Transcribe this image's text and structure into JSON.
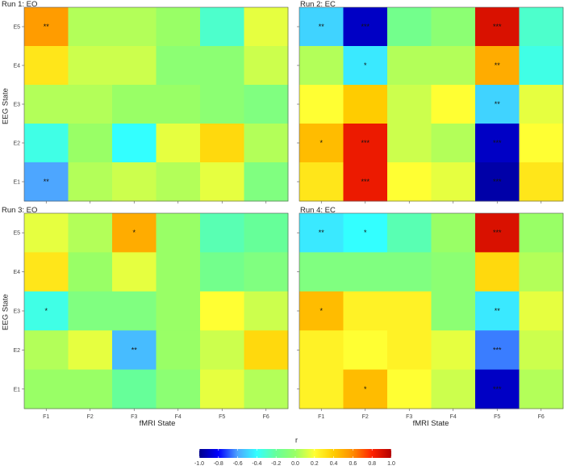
{
  "chart_data": [
    {
      "type": "heatmap",
      "title": "Run 1: EO",
      "xlabel": "",
      "ylabel": "EEG State",
      "x_categories": [
        "F1",
        "F2",
        "F3",
        "F4",
        "F5",
        "F6"
      ],
      "y_categories": [
        "E5",
        "E4",
        "E3",
        "E2",
        "E1"
      ],
      "values": [
        [
          0.55,
          0.05,
          0.05,
          0.0,
          -0.3,
          0.15
        ],
        [
          0.3,
          0.1,
          0.1,
          -0.05,
          -0.05,
          0.1
        ],
        [
          0.05,
          0.05,
          0.0,
          0.0,
          -0.05,
          -0.1
        ],
        [
          -0.35,
          0.0,
          -0.4,
          0.15,
          0.35,
          0.05
        ],
        [
          -0.6,
          0.05,
          0.1,
          0.05,
          0.15,
          -0.1
        ]
      ],
      "significance": [
        [
          "**",
          "",
          "",
          "",
          "",
          ""
        ],
        [
          "",
          "",
          "",
          "",
          "",
          ""
        ],
        [
          "",
          "",
          "",
          "",
          "",
          ""
        ],
        [
          "",
          "",
          "",
          "",
          "",
          ""
        ],
        [
          "**",
          "",
          "",
          "",
          "",
          ""
        ]
      ]
    },
    {
      "type": "heatmap",
      "title": "Run 2: EC",
      "xlabel": "",
      "ylabel": "",
      "x_categories": [
        "F1",
        "F2",
        "F3",
        "F4",
        "F5",
        "F6"
      ],
      "y_categories": [
        "E5",
        "E4",
        "E3",
        "E2",
        "E1"
      ],
      "values": [
        [
          -0.5,
          -0.9,
          -0.15,
          -0.05,
          0.9,
          -0.3
        ],
        [
          0.05,
          -0.45,
          0.05,
          0.05,
          0.5,
          -0.35
        ],
        [
          0.2,
          0.4,
          0.1,
          0.2,
          -0.5,
          0.15
        ],
        [
          0.45,
          0.85,
          0.1,
          0.05,
          -0.9,
          0.2
        ],
        [
          0.3,
          0.85,
          0.2,
          0.15,
          -0.95,
          0.3
        ]
      ],
      "significance": [
        [
          "**",
          "***",
          "",
          "",
          "***",
          ""
        ],
        [
          "",
          "*",
          "",
          "",
          "**",
          ""
        ],
        [
          "",
          "",
          "",
          "",
          "**",
          ""
        ],
        [
          "*",
          "***",
          "",
          "",
          "***",
          ""
        ],
        [
          "",
          "***",
          "",
          "",
          "***",
          ""
        ]
      ]
    },
    {
      "type": "heatmap",
      "title": "Run 3: EO",
      "xlabel": "fMRI State",
      "ylabel": "EEG State",
      "x_categories": [
        "F1",
        "F2",
        "F3",
        "F4",
        "F5",
        "F6"
      ],
      "y_categories": [
        "E5",
        "E4",
        "E3",
        "E2",
        "E1"
      ],
      "values": [
        [
          0.15,
          0.05,
          0.5,
          0.0,
          -0.25,
          -0.2
        ],
        [
          0.3,
          0.0,
          0.15,
          0.0,
          -0.15,
          -0.1
        ],
        [
          -0.35,
          -0.1,
          -0.1,
          0.0,
          0.2,
          0.1
        ],
        [
          0.05,
          0.15,
          -0.55,
          0.0,
          0.1,
          0.35
        ],
        [
          0.0,
          0.0,
          -0.2,
          -0.05,
          0.15,
          0.05
        ]
      ],
      "significance": [
        [
          "",
          "",
          "*",
          "",
          "",
          ""
        ],
        [
          "",
          "",
          "",
          "",
          "",
          ""
        ],
        [
          "*",
          "",
          "",
          "",
          "",
          ""
        ],
        [
          "",
          "",
          "**",
          "",
          "",
          ""
        ],
        [
          "",
          "",
          "",
          "",
          "",
          ""
        ]
      ]
    },
    {
      "type": "heatmap",
      "title": "Run 4: EC",
      "xlabel": "fMRI State",
      "ylabel": "",
      "x_categories": [
        "F1",
        "F2",
        "F3",
        "F4",
        "F5",
        "F6"
      ],
      "y_categories": [
        "E5",
        "E4",
        "E3",
        "E2",
        "E1"
      ],
      "values": [
        [
          -0.45,
          -0.4,
          -0.25,
          0.0,
          0.9,
          0.0
        ],
        [
          -0.1,
          -0.1,
          -0.1,
          -0.05,
          0.35,
          0.05
        ],
        [
          0.45,
          0.25,
          0.25,
          -0.05,
          -0.45,
          0.15
        ],
        [
          0.25,
          0.2,
          0.25,
          0.15,
          -0.65,
          0.1
        ],
        [
          0.25,
          0.45,
          0.2,
          0.1,
          -0.9,
          0.05
        ]
      ],
      "significance": [
        [
          "**",
          "*",
          "",
          "",
          "***",
          ""
        ],
        [
          "",
          "",
          "",
          "",
          "",
          ""
        ],
        [
          "*",
          "",
          "",
          "",
          "**",
          ""
        ],
        [
          "",
          "",
          "",
          "",
          "***",
          ""
        ],
        [
          "",
          "*",
          "",
          "",
          "***",
          ""
        ]
      ]
    }
  ],
  "legend": {
    "title": "r",
    "min": -1.0,
    "max": 1.0,
    "ticks": [
      "-1.0",
      "-0.8",
      "-0.6",
      "-0.4",
      "-0.2",
      "0.0",
      "0.2",
      "0.4",
      "0.6",
      "0.8",
      "1.0"
    ]
  },
  "colors": {
    "scale": [
      "#00008B",
      "#0000FF",
      "#4DA6FF",
      "#33FFFF",
      "#66FF99",
      "#99FF66",
      "#FFFF33",
      "#FFCC00",
      "#FF8C00",
      "#FF2200",
      "#B30000"
    ]
  }
}
